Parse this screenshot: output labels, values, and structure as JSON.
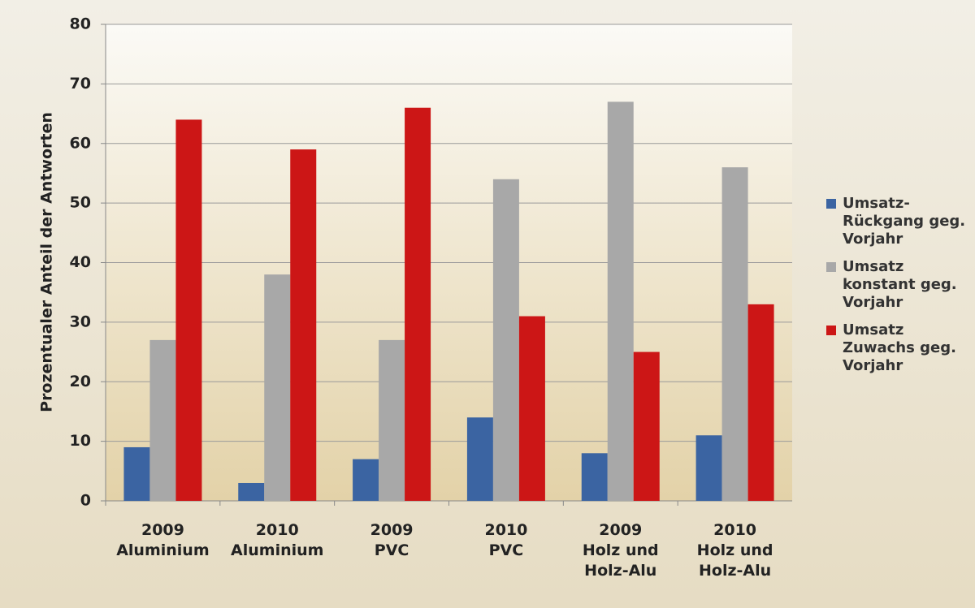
{
  "chart_data": {
    "type": "bar",
    "y_label": "Prozentualer Anteil der  Antworten",
    "categories": [
      [
        "2009",
        "Aluminium"
      ],
      [
        "2010",
        "Aluminium"
      ],
      [
        "2009",
        "PVC"
      ],
      [
        "2010",
        "PVC"
      ],
      [
        "2009",
        "Holz und",
        "Holz-Alu"
      ],
      [
        "2010",
        "Holz und",
        "Holz-Alu"
      ]
    ],
    "series": [
      {
        "name": "Umsatz-Rückgang geg. Vorjahr",
        "color": "#3b64a2",
        "values": [
          9,
          3,
          7,
          14,
          8,
          11
        ]
      },
      {
        "name": "Umsatz konstant geg. Vorjahr",
        "color": "#a8a8a8",
        "values": [
          27,
          38,
          27,
          54,
          67,
          56
        ]
      },
      {
        "name": "Umsatz Zuwachs geg. Vorjahr",
        "color": "#cc1616",
        "values": [
          64,
          59,
          66,
          31,
          25,
          33
        ]
      }
    ],
    "ylim": [
      0,
      80
    ],
    "yticks": [
      0,
      10,
      20,
      30,
      40,
      50,
      60,
      70,
      80
    ],
    "grid": true,
    "legend": "right"
  }
}
